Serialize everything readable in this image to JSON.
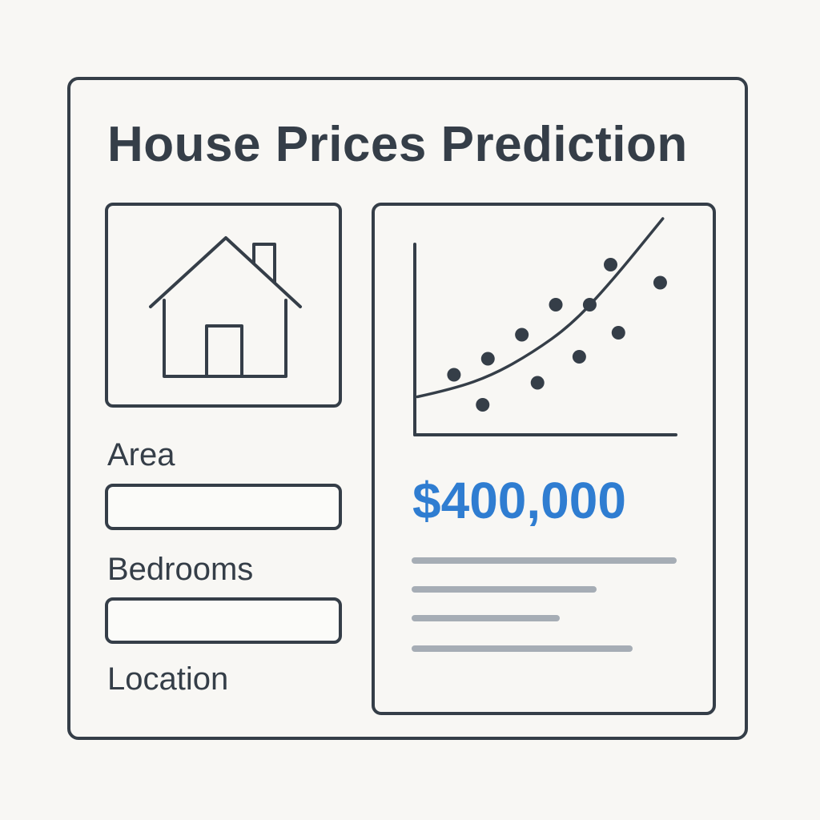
{
  "app": {
    "title": "House Prices Prediction"
  },
  "form": {
    "area_label": "Area",
    "bedrooms_label": "Bedrooms",
    "location_label": "Location",
    "area_value": "",
    "bedrooms_value": ""
  },
  "result": {
    "price": "$400,000"
  },
  "icons": {
    "house": "house-icon"
  },
  "colors": {
    "outline": "#353e48",
    "accent": "#2f7dd1",
    "placeholder_line": "#a6adb5",
    "background": "#f8f7f4"
  },
  "chart_data": {
    "type": "scatter",
    "title": "",
    "xlabel": "",
    "ylabel": "",
    "xlim": [
      0,
      10
    ],
    "ylim": [
      0,
      10
    ],
    "grid": false,
    "points": [
      {
        "x": 1.5,
        "y": 3.0
      },
      {
        "x": 2.6,
        "y": 1.5
      },
      {
        "x": 2.8,
        "y": 3.8
      },
      {
        "x": 4.1,
        "y": 5.0
      },
      {
        "x": 4.7,
        "y": 2.6
      },
      {
        "x": 5.4,
        "y": 6.5
      },
      {
        "x": 6.3,
        "y": 3.9
      },
      {
        "x": 6.7,
        "y": 6.5
      },
      {
        "x": 7.5,
        "y": 8.5
      },
      {
        "x": 7.8,
        "y": 5.1
      },
      {
        "x": 9.4,
        "y": 7.6
      }
    ],
    "trend_line": [
      {
        "x": 0.1,
        "y": 1.9
      },
      {
        "x": 1.5,
        "y": 2.3
      },
      {
        "x": 3.0,
        "y": 3.0
      },
      {
        "x": 4.5,
        "y": 4.1
      },
      {
        "x": 6.0,
        "y": 5.5
      },
      {
        "x": 7.5,
        "y": 7.6
      },
      {
        "x": 9.5,
        "y": 10.8
      }
    ]
  }
}
